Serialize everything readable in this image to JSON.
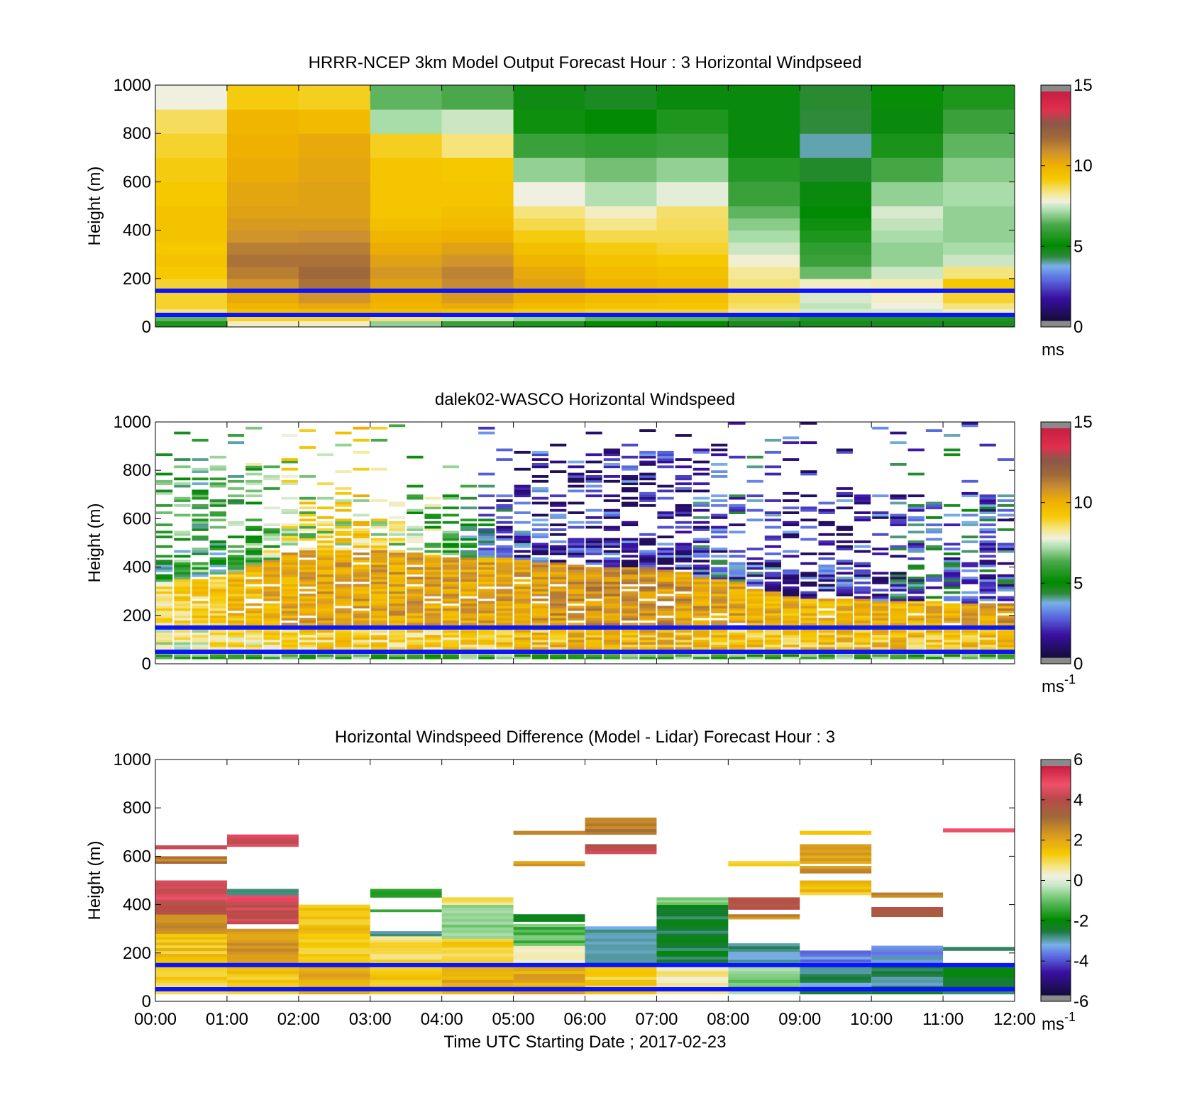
{
  "chart_data": [
    {
      "type": "heatmap",
      "title": "HRRR-NCEP 3km Model Output   Forecast Hour : 3 Horizontal Windpseed",
      "ylabel": "Height (m)",
      "xlabel": "",
      "ylim": [
        0,
        1000
      ],
      "yticks": [
        "0",
        "200",
        "400",
        "600",
        "800",
        "1000"
      ],
      "colorbar": {
        "ticks": [
          "0",
          "5",
          "10",
          "15"
        ],
        "unit": "ms",
        "unit_sup": "",
        "range": [
          0,
          15
        ]
      },
      "reference_lines_m": [
        50,
        150
      ],
      "row_heights_m": [
        0,
        25,
        50,
        75,
        100,
        150,
        200,
        250,
        300,
        350,
        400,
        450,
        500,
        600,
        700,
        800,
        900,
        1000
      ],
      "columns": [
        [
          5.5,
          6.5,
          8.5,
          9.0,
          9.0,
          9.0,
          9.3,
          9.5,
          9.3,
          9.5,
          9.5,
          9.5,
          9.3,
          9.2,
          9.0,
          8.7,
          7.8
        ],
        [
          8.0,
          9.0,
          9.6,
          10.0,
          10.4,
          11.0,
          11.5,
          11.8,
          11.5,
          11.0,
          10.8,
          10.6,
          10.5,
          10.3,
          10.2,
          10.0,
          9.2
        ],
        [
          8.0,
          9.0,
          9.8,
          10.4,
          11.0,
          11.8,
          12.0,
          11.8,
          11.5,
          11.1,
          10.8,
          10.6,
          10.6,
          10.5,
          10.4,
          9.8,
          9.1
        ],
        [
          7.0,
          8.5,
          9.7,
          10.0,
          10.2,
          10.6,
          10.9,
          10.6,
          10.3,
          10.0,
          9.6,
          9.4,
          9.4,
          9.4,
          9.1,
          7.2,
          6.5
        ],
        [
          6.0,
          7.5,
          9.5,
          10.3,
          10.8,
          11.2,
          11.4,
          11.0,
          10.6,
          10.2,
          9.8,
          9.6,
          9.4,
          9.3,
          8.5,
          7.5,
          6.3
        ],
        [
          5.5,
          7.0,
          9.2,
          9.8,
          10.2,
          10.6,
          10.4,
          10.0,
          9.6,
          9.2,
          8.8,
          8.5,
          7.8,
          7.0,
          6.0,
          5.2,
          4.7
        ],
        [
          5.0,
          6.5,
          9.0,
          9.5,
          9.8,
          10.0,
          9.8,
          9.5,
          9.2,
          8.8,
          8.4,
          8.0,
          7.3,
          6.7,
          5.8,
          4.9,
          4.5
        ],
        [
          5.0,
          6.5,
          9.0,
          9.4,
          9.6,
          9.8,
          9.6,
          9.3,
          9.0,
          8.8,
          8.7,
          8.6,
          7.7,
          7.0,
          6.0,
          5.5,
          4.8
        ],
        [
          4.5,
          6.0,
          8.3,
          8.6,
          8.8,
          8.5,
          8.3,
          7.9,
          7.5,
          7.2,
          6.9,
          6.5,
          6.0,
          5.6,
          4.8,
          4.8,
          4.8
        ],
        [
          4.5,
          5.5,
          7.6,
          7.4,
          7.6,
          8.0,
          6.6,
          6.0,
          5.8,
          5.5,
          5.2,
          4.9,
          4.8,
          4.4,
          3.8,
          4.2,
          4.3
        ],
        [
          4.5,
          5.5,
          7.6,
          7.8,
          8.0,
          8.1,
          7.5,
          7.0,
          7.0,
          7.2,
          7.4,
          7.6,
          7.0,
          6.2,
          5.4,
          4.8,
          5.1
        ],
        [
          4.5,
          5.5,
          8.0,
          8.5,
          9.0,
          9.3,
          8.5,
          7.5,
          7.2,
          7.0,
          7.0,
          7.0,
          7.2,
          6.9,
          6.5,
          6.0,
          5.5
        ]
      ]
    },
    {
      "type": "heatmap",
      "title": "dalek02-WASCO  Horizontal Windspeed",
      "ylabel": "Height (m)",
      "xlabel": "",
      "ylim": [
        0,
        1000
      ],
      "yticks": [
        "0",
        "200",
        "400",
        "600",
        "800",
        "1000"
      ],
      "colorbar": {
        "ticks": [
          "0",
          "5",
          "10",
          "15"
        ],
        "unit": "ms",
        "unit_sup": "-1",
        "range": [
          0,
          15
        ]
      },
      "reference_lines_m": [
        50,
        150
      ],
      "core_profile_ms": {
        "time_h": [
          0,
          1,
          2,
          3,
          4,
          5,
          6,
          7,
          8,
          9,
          10,
          11,
          12
        ],
        "near_surface": [
          7.5,
          8.5,
          9.0,
          9.0,
          9.0,
          9.5,
          10.0,
          10.0,
          9.5,
          9.5,
          9.5,
          9.5,
          9.5
        ],
        "boundary_layer": [
          8.5,
          9.5,
          10.5,
          10.5,
          10.5,
          10.5,
          11.0,
          11.0,
          10.5,
          10.0,
          10.0,
          10.0,
          11.0
        ],
        "core_top_m": [
          330,
          360,
          470,
          470,
          440,
          430,
          400,
          390,
          340,
          270,
          260,
          250,
          240
        ],
        "upper_speed": [
          5.5,
          5.5,
          8.0,
          8.5,
          6.0,
          2.0,
          1.5,
          1.5,
          2.5,
          1.5,
          2.0,
          3.0,
          2.5
        ]
      }
    },
    {
      "type": "heatmap",
      "title": "Horizontal Windspeed Difference (Model - Lidar) Forecast Hour : 3",
      "ylabel": "Height (m)",
      "xlabel": "Time UTC  Starting Date ; 2017-02-23",
      "ylim": [
        0,
        1000
      ],
      "yticks": [
        "0",
        "200",
        "400",
        "600",
        "800",
        "1000"
      ],
      "xticks": [
        "00:00",
        "01:00",
        "02:00",
        "03:00",
        "04:00",
        "05:00",
        "06:00",
        "07:00",
        "08:00",
        "09:00",
        "10:00",
        "11:00",
        "12:00"
      ],
      "colorbar": {
        "ticks": [
          "-6",
          "-4",
          "-2",
          "0",
          "2",
          "4",
          "6"
        ],
        "unit": "ms",
        "unit_sup": "-1",
        "range": [
          -6,
          6
        ]
      },
      "reference_lines_m": [
        50,
        150
      ],
      "bands": [
        {
          "col": 0,
          "from": 30,
          "to": 150,
          "v": 1.2
        },
        {
          "col": 0,
          "from": 150,
          "to": 280,
          "v": 1.5
        },
        {
          "col": 0,
          "from": 280,
          "to": 360,
          "v": 2.8
        },
        {
          "col": 0,
          "from": 360,
          "to": 410,
          "v": 4.2
        },
        {
          "col": 0,
          "from": 410,
          "to": 500,
          "v": 4.8
        },
        {
          "col": 0,
          "from": 570,
          "to": 600,
          "v": 3.0
        },
        {
          "col": 0,
          "from": 630,
          "to": 645,
          "v": 4.5
        },
        {
          "col": 1,
          "from": 30,
          "to": 150,
          "v": 1.5
        },
        {
          "col": 1,
          "from": 150,
          "to": 300,
          "v": 2.5
        },
        {
          "col": 1,
          "from": 320,
          "to": 400,
          "v": 4.5
        },
        {
          "col": 1,
          "from": 400,
          "to": 440,
          "v": 5.0
        },
        {
          "col": 1,
          "from": 440,
          "to": 465,
          "v": -3.2
        },
        {
          "col": 1,
          "from": 640,
          "to": 690,
          "v": 4.8
        },
        {
          "col": 2,
          "from": 30,
          "to": 150,
          "v": 2.0
        },
        {
          "col": 2,
          "from": 150,
          "to": 400,
          "v": 1.5
        },
        {
          "col": 3,
          "from": 30,
          "to": 150,
          "v": 1.5
        },
        {
          "col": 3,
          "from": 150,
          "to": 280,
          "v": 1.0
        },
        {
          "col": 3,
          "from": 270,
          "to": 290,
          "v": -3.0
        },
        {
          "col": 3,
          "from": 430,
          "to": 465,
          "v": -1.5
        },
        {
          "col": 3,
          "from": 370,
          "to": 380,
          "v": -1.5
        },
        {
          "col": 4,
          "from": 30,
          "to": 150,
          "v": 2.0
        },
        {
          "col": 4,
          "from": 150,
          "to": 260,
          "v": 1.2
        },
        {
          "col": 4,
          "from": 260,
          "to": 400,
          "v": -0.8
        },
        {
          "col": 4,
          "from": 400,
          "to": 430,
          "v": 1.0
        },
        {
          "col": 5,
          "from": 30,
          "to": 150,
          "v": 2.0
        },
        {
          "col": 5,
          "from": 150,
          "to": 230,
          "v": 0.5
        },
        {
          "col": 5,
          "from": 230,
          "to": 320,
          "v": -1.2
        },
        {
          "col": 5,
          "from": 330,
          "to": 360,
          "v": -2.2
        },
        {
          "col": 5,
          "from": 560,
          "to": 580,
          "v": 2.5
        },
        {
          "col": 5,
          "from": 690,
          "to": 705,
          "v": 2.8
        },
        {
          "col": 6,
          "from": 30,
          "to": 150,
          "v": 1.2
        },
        {
          "col": 6,
          "from": 150,
          "to": 310,
          "v": -3.0
        },
        {
          "col": 6,
          "from": 610,
          "to": 650,
          "v": 4.5
        },
        {
          "col": 6,
          "from": 690,
          "to": 760,
          "v": 3.0
        },
        {
          "col": 7,
          "from": 30,
          "to": 150,
          "v": 0.5
        },
        {
          "col": 7,
          "from": 150,
          "to": 400,
          "v": -2.5
        },
        {
          "col": 7,
          "from": 400,
          "to": 430,
          "v": -0.8
        },
        {
          "col": 8,
          "from": 30,
          "to": 150,
          "v": -0.8
        },
        {
          "col": 8,
          "from": 150,
          "to": 240,
          "v": -3.0
        },
        {
          "col": 8,
          "from": 340,
          "to": 360,
          "v": 2.5
        },
        {
          "col": 8,
          "from": 380,
          "to": 430,
          "v": 4.0
        },
        {
          "col": 8,
          "from": 560,
          "to": 580,
          "v": 1.5
        },
        {
          "col": 9,
          "from": 30,
          "to": 150,
          "v": -3.0
        },
        {
          "col": 9,
          "from": 150,
          "to": 210,
          "v": -3.8
        },
        {
          "col": 9,
          "from": 440,
          "to": 500,
          "v": 1.5
        },
        {
          "col": 9,
          "from": 530,
          "to": 560,
          "v": 2.5
        },
        {
          "col": 9,
          "from": 570,
          "to": 650,
          "v": 2.2
        },
        {
          "col": 9,
          "from": 690,
          "to": 705,
          "v": 1.5
        },
        {
          "col": 10,
          "from": 30,
          "to": 150,
          "v": -2.8
        },
        {
          "col": 10,
          "from": 150,
          "to": 230,
          "v": -3.5
        },
        {
          "col": 10,
          "from": 350,
          "to": 390,
          "v": 4.0
        },
        {
          "col": 10,
          "from": 430,
          "to": 450,
          "v": 3.0
        },
        {
          "col": 11,
          "from": 30,
          "to": 150,
          "v": -2.5
        },
        {
          "col": 11,
          "from": 210,
          "to": 225,
          "v": -2.8
        },
        {
          "col": 11,
          "from": 700,
          "to": 715,
          "v": 5.0
        }
      ]
    }
  ]
}
